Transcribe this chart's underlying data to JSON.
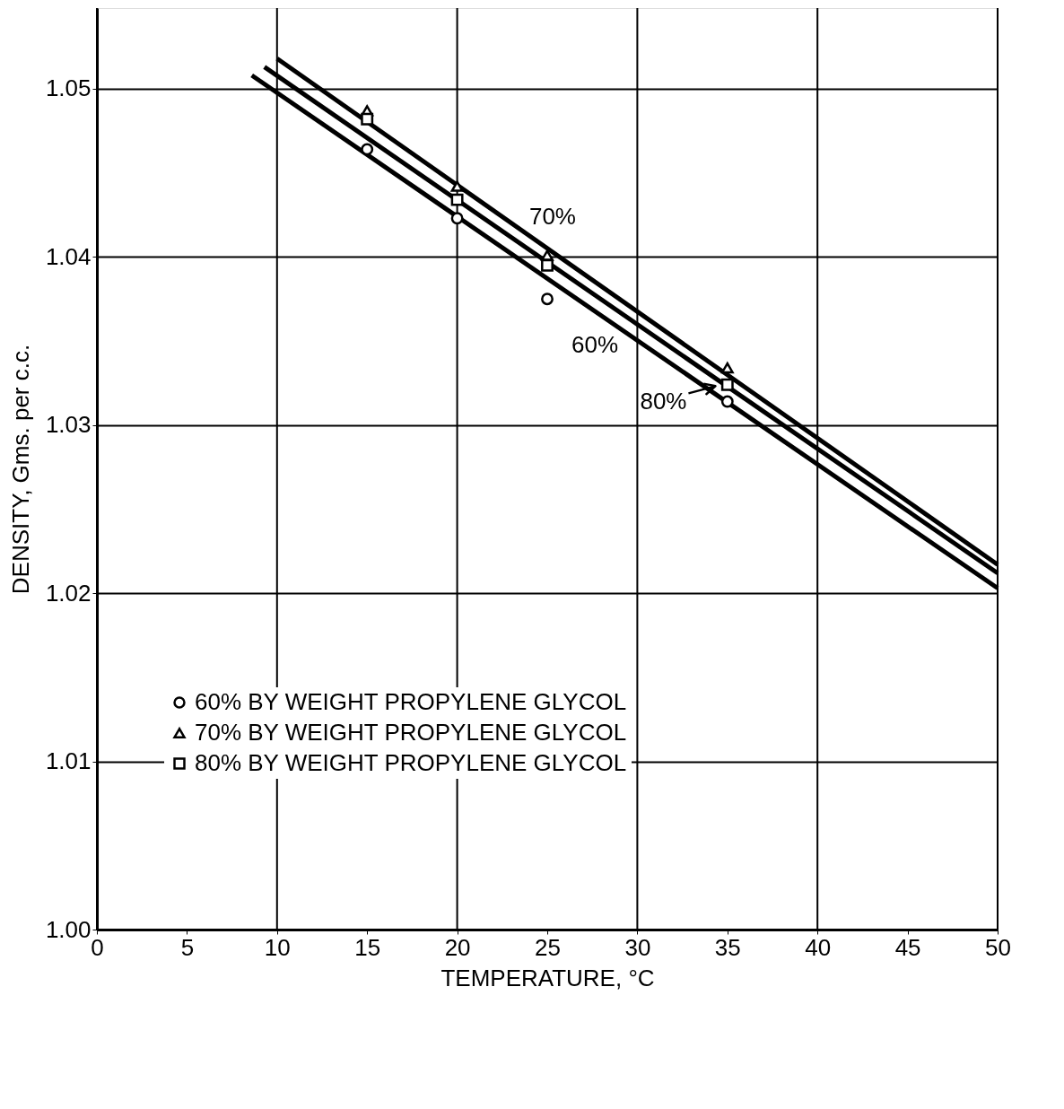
{
  "chart_data": {
    "type": "scatter",
    "xlabel": "TEMPERATURE, °C",
    "ylabel": "DENSITY, Gms. per c.c.",
    "xlim": [
      0,
      50
    ],
    "ylim": [
      1.0,
      1.0548
    ],
    "xticks": [
      0,
      5,
      10,
      15,
      20,
      25,
      30,
      35,
      40,
      45,
      50
    ],
    "yticks": [
      {
        "value": 1.0,
        "label": "1.00"
      },
      1.01,
      1.02,
      1.03,
      1.04,
      1.05
    ],
    "grid": true,
    "legend": "bottom left",
    "series": [
      {
        "name": "60% BY WEIGHT PROPYLENE GLYCOL",
        "color": "#000000",
        "marker": "circle",
        "x": [
          15,
          20,
          25,
          35
        ],
        "values": [
          1.0464,
          1.0423,
          1.0375,
          1.0314
        ]
      },
      {
        "name": "70% BY WEIGHT PROPYLENE GLYCOL",
        "color": "#000000",
        "marker": "triangle",
        "x": [
          15,
          20,
          25,
          35
        ],
        "values": [
          1.0487,
          1.0442,
          1.0401,
          1.0334
        ]
      },
      {
        "name": "80% BY WEIGHT PROPYLENE GLYCOL",
        "color": "#000000",
        "marker": "square",
        "x": [
          15,
          20,
          25,
          35
        ],
        "values": [
          1.0482,
          1.0434,
          1.0395,
          1.0324
        ]
      },
      {
        "type": "line",
        "name": "70%",
        "color": "#000000",
        "line_style": "solid",
        "marker": "none",
        "x": [
          10,
          50
        ],
        "values": [
          1.0518,
          1.0217
        ]
      },
      {
        "type": "line",
        "color": "#000000",
        "line_style": "solid",
        "marker": "none",
        "x": [
          9.3,
          50
        ],
        "values": [
          1.0513,
          1.0212
        ]
      },
      {
        "type": "line",
        "name": "60%",
        "color": "#000000",
        "line_style": "solid",
        "marker": "none",
        "x": [
          8.6,
          50
        ],
        "values": [
          1.0508,
          1.0203
        ]
      }
    ],
    "annotations": [
      "80%"
    ]
  }
}
